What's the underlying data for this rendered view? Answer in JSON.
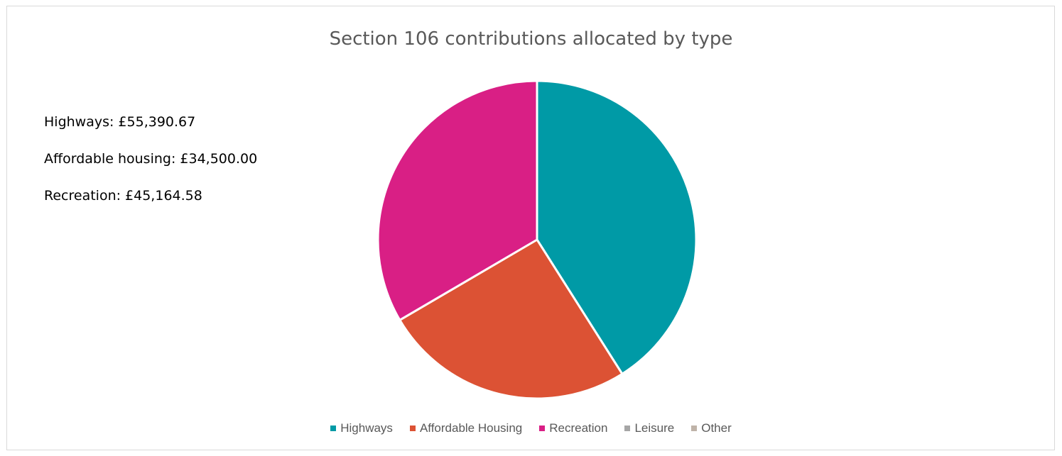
{
  "chart_data": {
    "type": "pie",
    "title": "Section 106 contributions allocated by type",
    "categories": [
      "Highways",
      "Affordable Housing",
      "Recreation",
      "Leisure",
      "Other"
    ],
    "values": [
      55390.67,
      34500.0,
      45164.58,
      0,
      0
    ],
    "colors": [
      "#009aa6",
      "#dc5234",
      "#d91f85",
      "#a6a6a6",
      "#bfb3a8"
    ],
    "legend_position": "bottom",
    "annotations": [
      "Highways: £55,390.67",
      "Affordable housing: £34,500.00",
      "Recreation: £45,164.58"
    ]
  }
}
